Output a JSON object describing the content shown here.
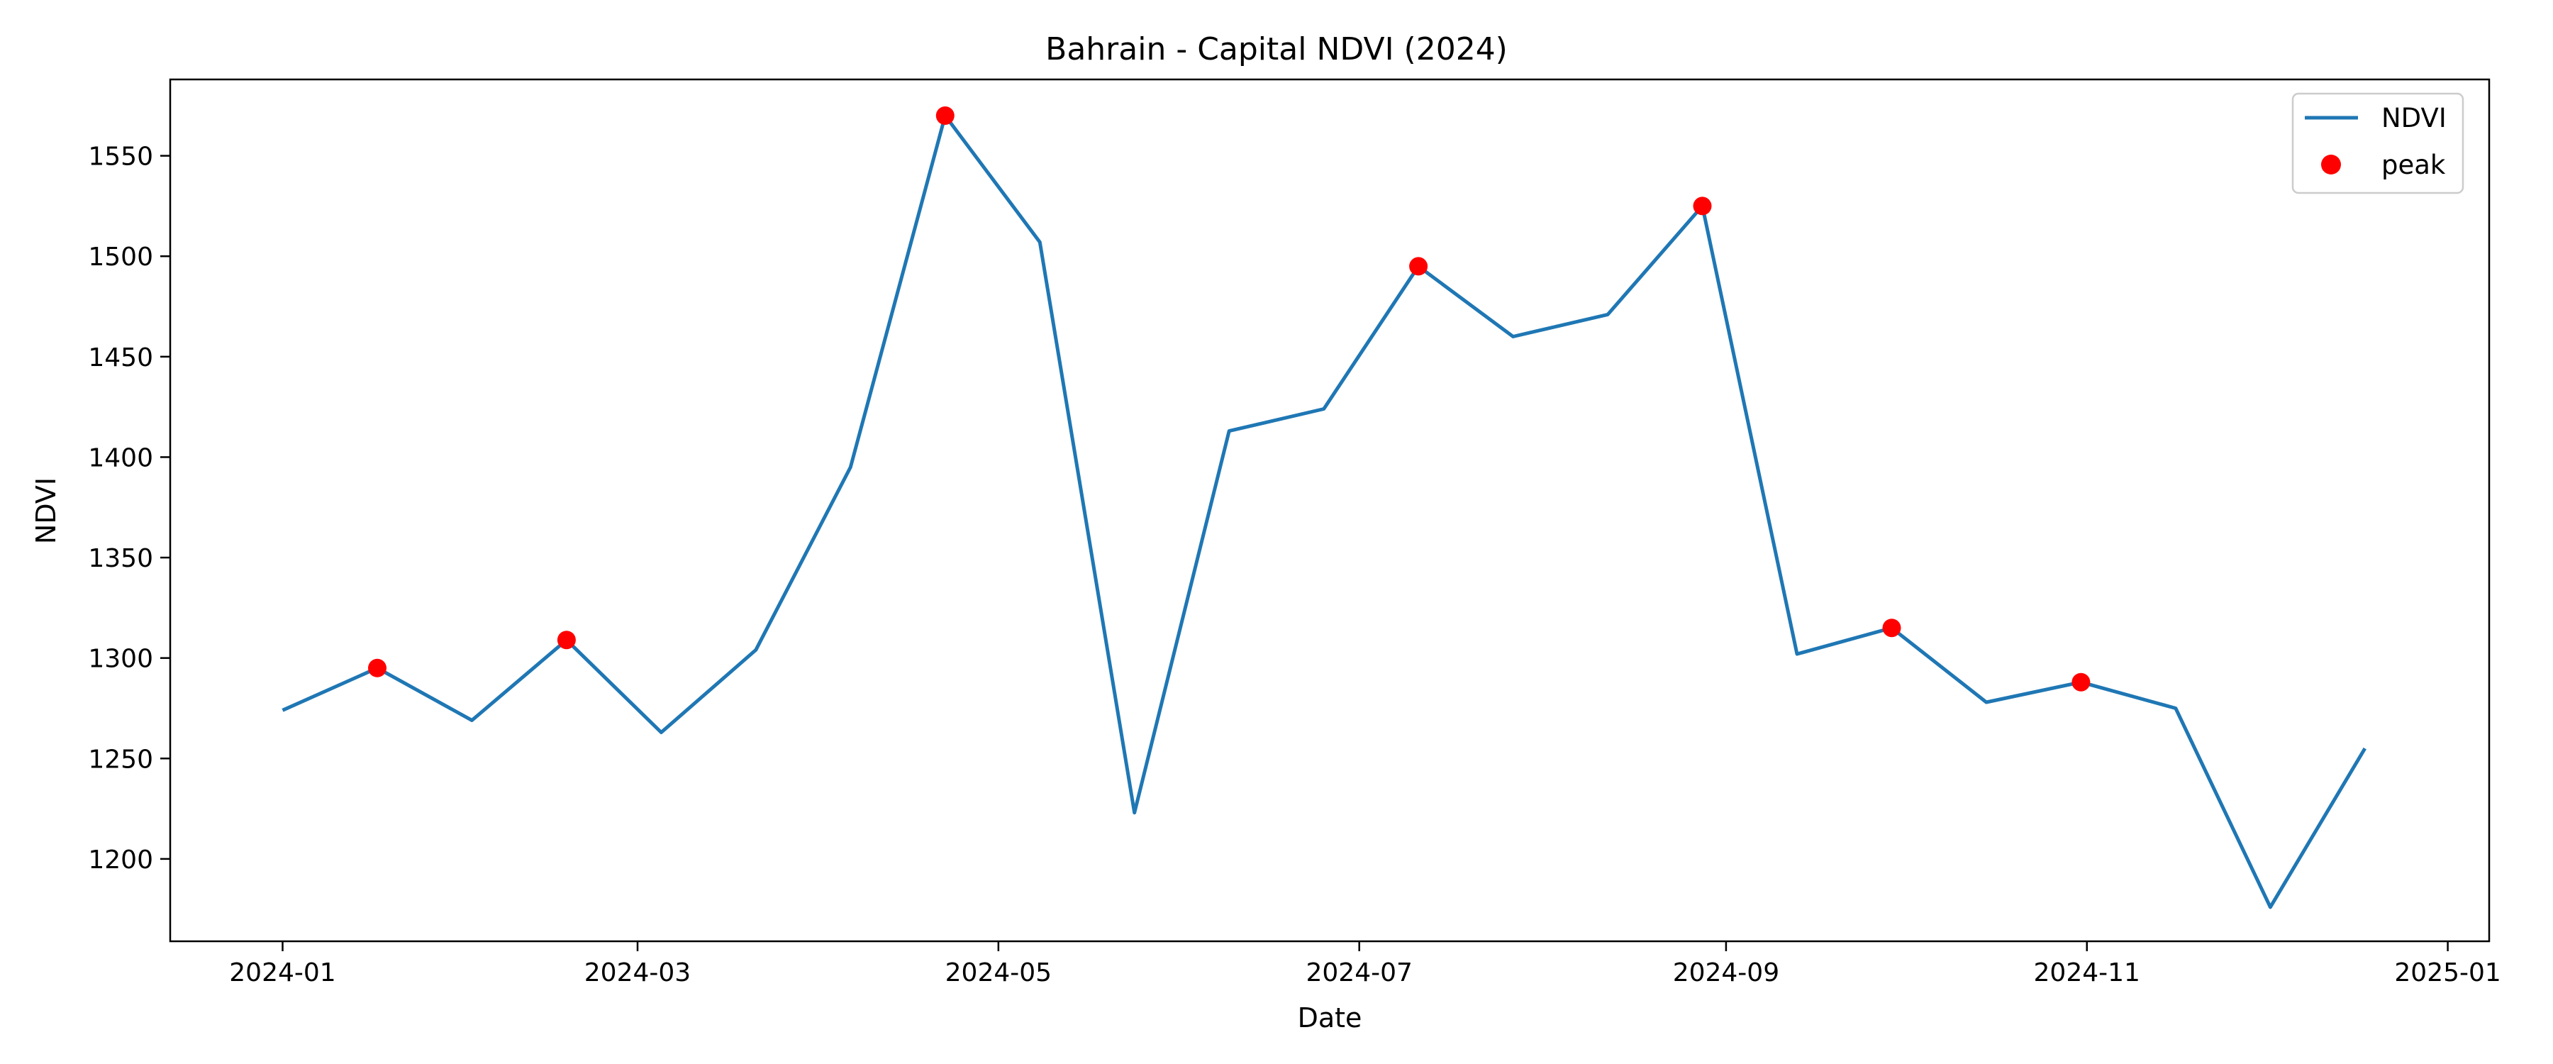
{
  "chart_data": {
    "type": "line",
    "title": "Bahrain - Capital NDVI (2024)",
    "xlabel": "Date",
    "ylabel": "NDVI",
    "xlim": [
      "2023-12-13",
      "2025-01-08"
    ],
    "ylim": [
      1159,
      1588
    ],
    "x_ticks": [
      "2024-01",
      "2024-03",
      "2024-05",
      "2024-07",
      "2024-09",
      "2024-11",
      "2025-01"
    ],
    "y_ticks": [
      1200,
      1250,
      1300,
      1350,
      1400,
      1450,
      1500,
      1550
    ],
    "legend_position": "top-right",
    "grid": false,
    "series": [
      {
        "name": "NDVI",
        "kind": "line",
        "color": "#1f77b4",
        "points": [
          {
            "x": "2024-01-01",
            "y": 1274
          },
          {
            "x": "2024-01-17",
            "y": 1295
          },
          {
            "x": "2024-02-02",
            "y": 1269
          },
          {
            "x": "2024-02-18",
            "y": 1309
          },
          {
            "x": "2024-03-05",
            "y": 1263
          },
          {
            "x": "2024-03-21",
            "y": 1304
          },
          {
            "x": "2024-04-06",
            "y": 1395
          },
          {
            "x": "2024-04-22",
            "y": 1570
          },
          {
            "x": "2024-05-08",
            "y": 1507
          },
          {
            "x": "2024-05-24",
            "y": 1223
          },
          {
            "x": "2024-06-09",
            "y": 1413
          },
          {
            "x": "2024-06-25",
            "y": 1424
          },
          {
            "x": "2024-07-11",
            "y": 1495
          },
          {
            "x": "2024-07-27",
            "y": 1460
          },
          {
            "x": "2024-08-12",
            "y": 1471
          },
          {
            "x": "2024-08-28",
            "y": 1525
          },
          {
            "x": "2024-09-13",
            "y": 1302
          },
          {
            "x": "2024-09-29",
            "y": 1315
          },
          {
            "x": "2024-10-15",
            "y": 1278
          },
          {
            "x": "2024-10-31",
            "y": 1288
          },
          {
            "x": "2024-11-16",
            "y": 1275
          },
          {
            "x": "2024-12-02",
            "y": 1176
          },
          {
            "x": "2024-12-18",
            "y": 1255
          }
        ]
      },
      {
        "name": "peak",
        "kind": "scatter",
        "color": "#ff0000",
        "points": [
          {
            "x": "2024-01-17",
            "y": 1295
          },
          {
            "x": "2024-02-18",
            "y": 1309
          },
          {
            "x": "2024-04-22",
            "y": 1570
          },
          {
            "x": "2024-07-11",
            "y": 1495
          },
          {
            "x": "2024-08-28",
            "y": 1525
          },
          {
            "x": "2024-09-29",
            "y": 1315
          },
          {
            "x": "2024-10-31",
            "y": 1288
          }
        ]
      }
    ]
  }
}
